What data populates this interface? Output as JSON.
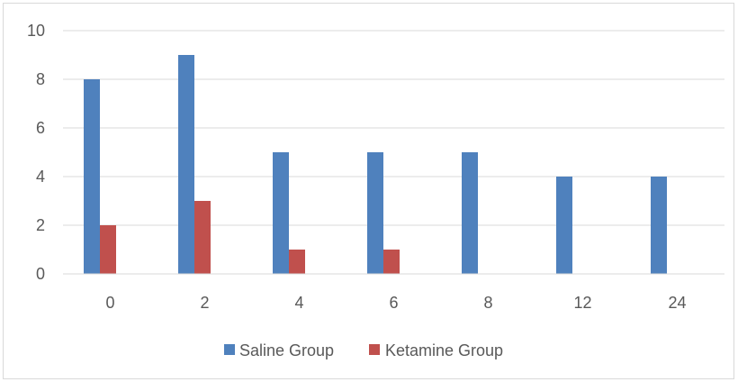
{
  "chart_data": {
    "type": "bar",
    "categories": [
      "0",
      "2",
      "4",
      "6",
      "8",
      "12",
      "24"
    ],
    "series": [
      {
        "name": "Saline Group",
        "values": [
          8,
          9,
          5,
          5,
          5,
          4,
          4
        ],
        "color": "#4f81bd"
      },
      {
        "name": "Ketamine Group",
        "values": [
          2,
          3,
          1,
          1,
          0,
          0,
          0
        ],
        "color": "#c0504d"
      }
    ],
    "y_ticks": [
      "0",
      "2",
      "4",
      "6",
      "8",
      "10"
    ],
    "ylim": [
      0,
      10
    ],
    "grid": true,
    "legend": "bottom"
  }
}
